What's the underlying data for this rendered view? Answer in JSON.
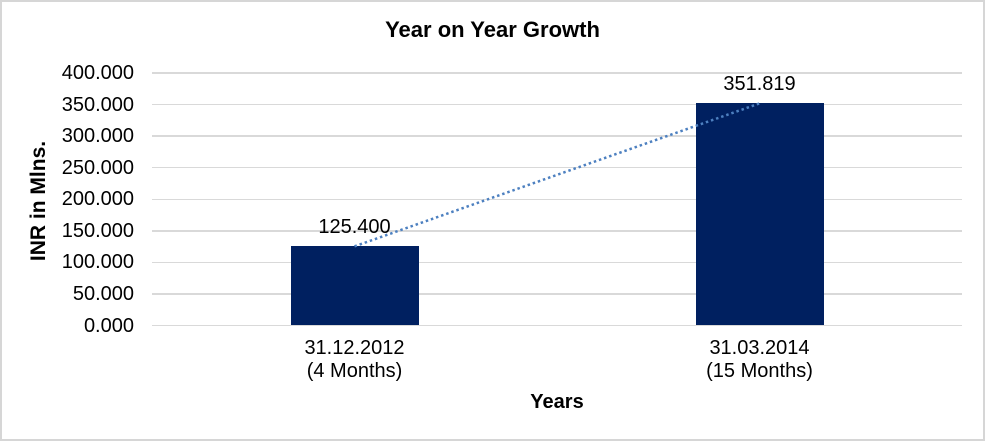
{
  "frame": {
    "background": "#ffffff",
    "border_color": "#d6d6d6"
  },
  "chart_data": {
    "type": "bar",
    "title": "Year on Year Growth",
    "xlabel": "Years",
    "ylabel": "INR in Mlns.",
    "categories": [
      {
        "line1": "31.12.2012",
        "line2": "(4 Months)"
      },
      {
        "line1": "31.03.2014",
        "line2": "(15 Months)"
      }
    ],
    "values": [
      125.4,
      351.819
    ],
    "data_labels": [
      "125.400",
      "351.819"
    ],
    "yticks": [
      {
        "value": 400,
        "label": "400.000"
      },
      {
        "value": 350,
        "label": "350.000"
      },
      {
        "value": 300,
        "label": "300.000"
      },
      {
        "value": 250,
        "label": "250.000"
      },
      {
        "value": 200,
        "label": "200.000"
      },
      {
        "value": 150,
        "label": "150.000"
      },
      {
        "value": 100,
        "label": "100.000"
      },
      {
        "value": 50,
        "label": "50.000"
      },
      {
        "value": 0,
        "label": "0.000"
      }
    ],
    "ylim": [
      0,
      400
    ],
    "grid": "horizontal",
    "legend": "none",
    "trendline": {
      "style": "dotted",
      "connects": "bar-top-centers"
    },
    "colors": {
      "bar": "#002060",
      "trendline": "#4d80c0",
      "gridline": "#d9d9d9",
      "text": "#000000"
    }
  }
}
